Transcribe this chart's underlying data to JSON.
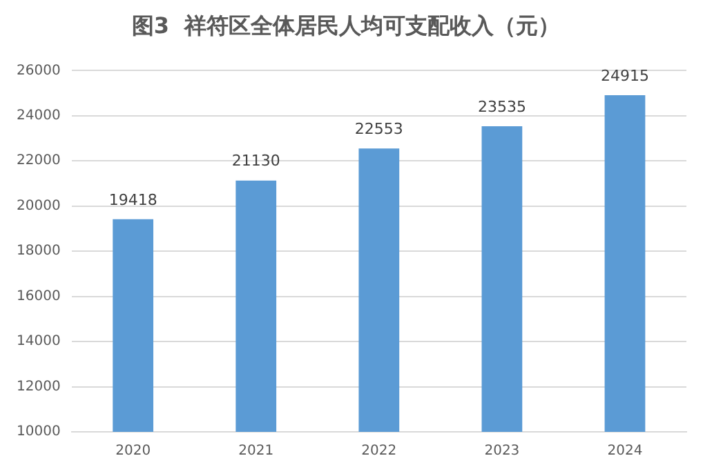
{
  "chart_data": {
    "type": "bar",
    "title": "图3  祥符区全体居民人均可支配收入（元）",
    "categories": [
      "2020",
      "2021",
      "2022",
      "2023",
      "2024"
    ],
    "values": [
      19418,
      21130,
      22553,
      23535,
      24915
    ],
    "color": "#5b9bd5",
    "ylim": [
      10000,
      26000
    ],
    "yticks": [
      10000,
      12000,
      14000,
      16000,
      18000,
      20000,
      22000,
      24000,
      26000
    ],
    "grid": "y",
    "legend": false,
    "data_labels": true
  }
}
